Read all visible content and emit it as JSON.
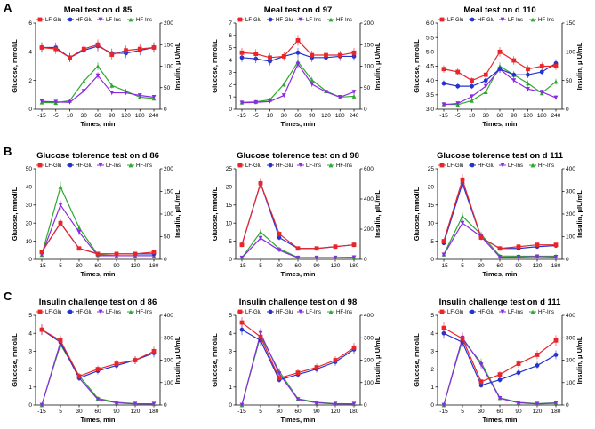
{
  "panel_labels": [
    "A",
    "B",
    "C"
  ],
  "legend_labels": [
    "LF-Glu",
    "HF-Glu",
    "LF-Ins",
    "HF-Ins"
  ],
  "colors": {
    "LF-Glu": "#e8262a",
    "HF-Glu": "#2433cf",
    "LF-Ins": "#8a2be2",
    "HF-Ins": "#2ea82e",
    "axis": "#000000"
  },
  "chart_data": [
    {
      "type": "line",
      "title": "Meal test on d 85",
      "xlabel": "Times, min",
      "ylabel": "Glucose, mmol/L",
      "y2label": "Insulin, μIU/mL",
      "categories": [
        "-15",
        "-5",
        "10",
        "30",
        "60",
        "90",
        "120",
        "180",
        "240"
      ],
      "ylim": [
        0,
        6
      ],
      "yticks": [
        0,
        2,
        4,
        6
      ],
      "y2lim": [
        0,
        200
      ],
      "y2ticks": [
        0,
        50,
        100,
        150,
        200
      ],
      "series": [
        {
          "name": "LF-Glu",
          "axis": "left",
          "values": [
            4.3,
            4.2,
            3.6,
            4.2,
            4.5,
            3.8,
            4.1,
            4.2,
            4.3
          ]
        },
        {
          "name": "HF-Glu",
          "axis": "left",
          "values": [
            4.3,
            4.3,
            3.6,
            4.1,
            4.4,
            3.9,
            3.9,
            4.1,
            4.3
          ]
        },
        {
          "name": "LF-Ins",
          "axis": "right",
          "values": [
            18,
            17,
            16,
            42,
            78,
            38,
            38,
            32,
            28
          ]
        },
        {
          "name": "HF-Ins",
          "axis": "right",
          "values": [
            16,
            15,
            20,
            65,
            100,
            55,
            42,
            28,
            25
          ]
        }
      ]
    },
    {
      "type": "line",
      "title": "Meal test on d 97",
      "xlabel": "Times, min",
      "ylabel": "Glucose, mmol/L",
      "y2label": "Insulin, μIU/mL",
      "categories": [
        "-15",
        "-5",
        "10",
        "30",
        "60",
        "90",
        "120",
        "180",
        "240"
      ],
      "ylim": [
        0,
        7
      ],
      "yticks": [
        0,
        1,
        2,
        3,
        4,
        5,
        6,
        7
      ],
      "y2lim": [
        0,
        200
      ],
      "y2ticks": [
        0,
        50,
        100,
        150,
        200
      ],
      "series": [
        {
          "name": "LF-Glu",
          "axis": "left",
          "values": [
            4.6,
            4.5,
            4.2,
            4.3,
            5.6,
            4.4,
            4.4,
            4.4,
            4.6
          ]
        },
        {
          "name": "HF-Glu",
          "axis": "left",
          "values": [
            4.2,
            4.1,
            3.9,
            4.3,
            4.6,
            4.2,
            4.2,
            4.3,
            4.3
          ]
        },
        {
          "name": "LF-Ins",
          "axis": "right",
          "values": [
            15,
            16,
            18,
            32,
            105,
            58,
            40,
            28,
            40
          ]
        },
        {
          "name": "HF-Ins",
          "axis": "right",
          "values": [
            16,
            17,
            22,
            58,
            110,
            68,
            42,
            28,
            30
          ]
        }
      ]
    },
    {
      "type": "line",
      "title": "Meal test on d 110",
      "xlabel": "Times, min",
      "ylabel": "Glucose, mmol/L",
      "y2label": "Insulin, μIU/mL",
      "categories": [
        "-15",
        "-5",
        "10",
        "30",
        "60",
        "90",
        "120",
        "180",
        "240"
      ],
      "ylim": [
        3.0,
        6.0
      ],
      "yticks": [
        3.0,
        3.5,
        4.0,
        4.5,
        5.0,
        5.5,
        6.0
      ],
      "y2lim": [
        0,
        150
      ],
      "y2ticks": [
        0,
        50,
        100,
        150
      ],
      "series": [
        {
          "name": "LF-Glu",
          "axis": "left",
          "values": [
            4.4,
            4.3,
            4.0,
            4.2,
            5.0,
            4.7,
            4.4,
            4.5,
            4.5
          ]
        },
        {
          "name": "HF-Glu",
          "axis": "left",
          "values": [
            3.9,
            3.8,
            3.8,
            4.0,
            4.4,
            4.2,
            4.2,
            4.3,
            4.6
          ]
        },
        {
          "name": "LF-Ins",
          "axis": "right",
          "values": [
            8,
            10,
            22,
            40,
            70,
            50,
            35,
            30,
            20
          ]
        },
        {
          "name": "HF-Ins",
          "axis": "right",
          "values": [
            9,
            8,
            15,
            30,
            75,
            60,
            45,
            28,
            48
          ]
        }
      ]
    },
    {
      "type": "line",
      "title": "Glucose tolerence test on d 86",
      "xlabel": "Times, min",
      "ylabel": "Glucose, mmol/L",
      "y2label": "Insulin, μIU/mL",
      "categories": [
        "-15",
        "5",
        "30",
        "60",
        "90",
        "120",
        "180"
      ],
      "ylim": [
        0,
        50
      ],
      "yticks": [
        0,
        10,
        20,
        30,
        40,
        50
      ],
      "y2lim": [
        0,
        200
      ],
      "y2ticks": [
        0,
        50,
        100,
        150,
        200
      ],
      "series": [
        {
          "name": "LF-Glu",
          "axis": "left",
          "values": [
            4,
            20,
            6,
            3,
            3,
            3,
            4
          ]
        },
        {
          "name": "HF-Glu",
          "axis": "left",
          "values": [
            4,
            20,
            6,
            3,
            3,
            3,
            3
          ]
        },
        {
          "name": "LF-Ins",
          "axis": "right",
          "values": [
            10,
            120,
            60,
            8,
            8,
            8,
            8
          ]
        },
        {
          "name": "HF-Ins",
          "axis": "right",
          "values": [
            10,
            160,
            70,
            10,
            8,
            8,
            8
          ]
        }
      ]
    },
    {
      "type": "line",
      "title": "Glucose tolerence test on d 98",
      "xlabel": "Times, min",
      "ylabel": "Glucose, mmol/L",
      "y2label": "Insulin, μIU/mL",
      "categories": [
        "-15",
        "5",
        "30",
        "60",
        "90",
        "120",
        "180"
      ],
      "ylim": [
        0,
        25
      ],
      "yticks": [
        0,
        5,
        10,
        15,
        20,
        25
      ],
      "y2lim": [
        0,
        600
      ],
      "y2ticks": [
        0,
        200,
        400,
        600
      ],
      "series": [
        {
          "name": "LF-Glu",
          "axis": "left",
          "values": [
            4,
            21,
            7,
            3,
            3,
            3.5,
            4
          ]
        },
        {
          "name": "HF-Glu",
          "axis": "left",
          "values": [
            4,
            21,
            6,
            3,
            3,
            3.5,
            4
          ]
        },
        {
          "name": "LF-Ins",
          "axis": "right",
          "values": [
            10,
            140,
            60,
            10,
            10,
            10,
            12
          ]
        },
        {
          "name": "HF-Ins",
          "axis": "right",
          "values": [
            10,
            180,
            70,
            12,
            12,
            12,
            14
          ]
        }
      ]
    },
    {
      "type": "line",
      "title": "Glucose tolerence test on d 111",
      "xlabel": "Times, min",
      "ylabel": "Glucose, mmol/L",
      "y2label": "Insulin, μIU/mL",
      "categories": [
        "-15",
        "5",
        "30",
        "60",
        "90",
        "120",
        "180"
      ],
      "ylim": [
        0,
        25
      ],
      "yticks": [
        0,
        5,
        10,
        15,
        20,
        25
      ],
      "y2lim": [
        0,
        400
      ],
      "y2ticks": [
        0,
        100,
        200,
        300,
        400
      ],
      "series": [
        {
          "name": "LF-Glu",
          "axis": "left",
          "values": [
            5,
            22,
            6,
            3,
            3.5,
            4,
            4
          ]
        },
        {
          "name": "HF-Glu",
          "axis": "left",
          "values": [
            4.5,
            21,
            6,
            3,
            3,
            3.5,
            3.8
          ]
        },
        {
          "name": "LF-Ins",
          "axis": "right",
          "values": [
            20,
            160,
            100,
            10,
            10,
            12,
            10
          ]
        },
        {
          "name": "HF-Ins",
          "axis": "right",
          "values": [
            22,
            190,
            110,
            15,
            14,
            14,
            14
          ]
        }
      ]
    },
    {
      "type": "line",
      "title": "Insulin challenge test on d 86",
      "xlabel": "Times, min",
      "ylabel": "Glucose, mmol/L",
      "y2label": "Insulin, μIU/mL",
      "categories": [
        "-15",
        "5",
        "30",
        "60",
        "90",
        "120",
        "180"
      ],
      "ylim": [
        0,
        5
      ],
      "yticks": [
        0,
        1,
        2,
        3,
        4,
        5
      ],
      "y2lim": [
        0,
        400
      ],
      "y2ticks": [
        0,
        100,
        200,
        300,
        400
      ],
      "series": [
        {
          "name": "LF-Glu",
          "axis": "left",
          "values": [
            4.2,
            3.6,
            1.6,
            2.0,
            2.3,
            2.5,
            3.0
          ]
        },
        {
          "name": "HF-Glu",
          "axis": "left",
          "values": [
            4.2,
            3.5,
            1.5,
            1.9,
            2.2,
            2.5,
            2.9
          ]
        },
        {
          "name": "LF-Ins",
          "axis": "right",
          "values": [
            0,
            280,
            120,
            25,
            10,
            5,
            5
          ]
        },
        {
          "name": "HF-Ins",
          "axis": "right",
          "values": [
            0,
            270,
            130,
            30,
            12,
            6,
            5
          ]
        }
      ]
    },
    {
      "type": "line",
      "title": "Insulin challenge test on d 98",
      "xlabel": "Times, min",
      "ylabel": "Glucose, mmol/L",
      "y2label": "Insulin, μIU/mL",
      "categories": [
        "-15",
        "5",
        "30",
        "60",
        "90",
        "120",
        "180"
      ],
      "ylim": [
        0,
        5
      ],
      "yticks": [
        0,
        1,
        2,
        3,
        4,
        5
      ],
      "y2lim": [
        0,
        400
      ],
      "y2ticks": [
        0,
        100,
        200,
        300,
        400
      ],
      "series": [
        {
          "name": "LF-Glu",
          "axis": "left",
          "values": [
            4.6,
            3.8,
            1.5,
            1.8,
            2.1,
            2.5,
            3.2
          ]
        },
        {
          "name": "HF-Glu",
          "axis": "left",
          "values": [
            4.2,
            3.6,
            1.4,
            1.7,
            2.0,
            2.4,
            3.1
          ]
        },
        {
          "name": "LF-Ins",
          "axis": "right",
          "values": [
            0,
            320,
            140,
            25,
            10,
            5,
            5
          ]
        },
        {
          "name": "HF-Ins",
          "axis": "right",
          "values": [
            0,
            310,
            150,
            28,
            12,
            6,
            5
          ]
        }
      ]
    },
    {
      "type": "line",
      "title": "Insulin challenge test on d 111",
      "xlabel": "Times, min",
      "ylabel": "Glucose, mmol/L",
      "y2label": "Insulin, μIU/mL",
      "categories": [
        "-15",
        "5",
        "30",
        "60",
        "90",
        "120",
        "180"
      ],
      "ylim": [
        0,
        5
      ],
      "yticks": [
        0,
        1,
        2,
        3,
        4,
        5
      ],
      "y2lim": [
        0,
        400
      ],
      "y2ticks": [
        0,
        100,
        200,
        300,
        400
      ],
      "series": [
        {
          "name": "LF-Glu",
          "axis": "left",
          "values": [
            4.3,
            3.7,
            1.3,
            1.7,
            2.3,
            2.8,
            3.6
          ]
        },
        {
          "name": "HF-Glu",
          "axis": "left",
          "values": [
            4.0,
            3.5,
            1.1,
            1.4,
            1.8,
            2.2,
            2.8
          ]
        },
        {
          "name": "LF-Ins",
          "axis": "right",
          "values": [
            0,
            300,
            180,
            30,
            10,
            5,
            8
          ]
        },
        {
          "name": "HF-Ins",
          "axis": "right",
          "values": [
            0,
            290,
            190,
            32,
            12,
            6,
            10
          ]
        }
      ]
    }
  ]
}
